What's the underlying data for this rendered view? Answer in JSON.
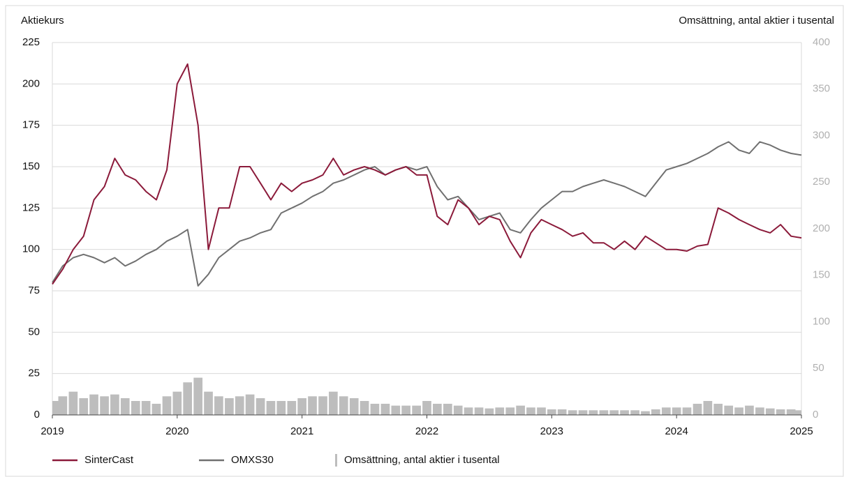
{
  "chart_data": {
    "type": "line",
    "ylabel": "Aktiekurs",
    "y2label": "Omsättning, antal aktier i tusental",
    "x": [
      2019,
      2019.083,
      2019.167,
      2019.25,
      2019.333,
      2019.417,
      2019.5,
      2019.583,
      2019.667,
      2019.75,
      2019.833,
      2019.917,
      2020,
      2020.083,
      2020.167,
      2020.25,
      2020.333,
      2020.417,
      2020.5,
      2020.583,
      2020.667,
      2020.75,
      2020.833,
      2020.917,
      2021,
      2021.083,
      2021.167,
      2021.25,
      2021.333,
      2021.417,
      2021.5,
      2021.583,
      2021.667,
      2021.75,
      2021.833,
      2021.917,
      2022,
      2022.083,
      2022.167,
      2022.25,
      2022.333,
      2022.417,
      2022.5,
      2022.583,
      2022.667,
      2022.75,
      2022.833,
      2022.917,
      2023,
      2023.083,
      2023.167,
      2023.25,
      2023.333,
      2023.417,
      2023.5,
      2023.583,
      2023.667,
      2023.75,
      2023.833,
      2023.917,
      2024,
      2024.083,
      2024.167,
      2024.25,
      2024.333,
      2024.417,
      2024.5,
      2024.583,
      2024.667,
      2024.75,
      2024.833,
      2024.917,
      2025
    ],
    "series": [
      {
        "name": "SinterCast",
        "color": "#8b1a3a",
        "kind": "line",
        "values": [
          79,
          88,
          100,
          108,
          130,
          138,
          155,
          145,
          142,
          135,
          130,
          148,
          200,
          212,
          175,
          100,
          125,
          125,
          150,
          150,
          140,
          130,
          140,
          135,
          140,
          142,
          145,
          155,
          145,
          148,
          150,
          148,
          145,
          148,
          150,
          145,
          145,
          120,
          115,
          130,
          125,
          115,
          120,
          118,
          105,
          95,
          110,
          118,
          115,
          112,
          108,
          110,
          104,
          104,
          100,
          105,
          100,
          108,
          104,
          100,
          100,
          99,
          102,
          103,
          125,
          122,
          118,
          115,
          112,
          110,
          115,
          108,
          107
        ]
      },
      {
        "name": "OMXS30",
        "color": "#707070",
        "kind": "line",
        "values": [
          80,
          90,
          95,
          97,
          95,
          92,
          95,
          90,
          93,
          97,
          100,
          105,
          108,
          112,
          78,
          85,
          95,
          100,
          105,
          107,
          110,
          112,
          122,
          125,
          128,
          132,
          135,
          140,
          142,
          145,
          148,
          150,
          145,
          148,
          150,
          148,
          150,
          138,
          130,
          132,
          125,
          118,
          120,
          122,
          112,
          110,
          118,
          125,
          130,
          135,
          135,
          138,
          140,
          142,
          140,
          138,
          135,
          132,
          140,
          148,
          150,
          152,
          155,
          158,
          162,
          165,
          160,
          158,
          165,
          163,
          160,
          158,
          157
        ]
      },
      {
        "name": "Omsättning, antal aktier i tusental",
        "color": "#bdbdbd",
        "kind": "bar",
        "axis": "y2",
        "values": [
          15,
          20,
          25,
          18,
          22,
          20,
          22,
          18,
          15,
          15,
          12,
          20,
          25,
          35,
          40,
          25,
          20,
          18,
          20,
          22,
          18,
          15,
          15,
          15,
          18,
          20,
          20,
          25,
          20,
          18,
          15,
          12,
          12,
          10,
          10,
          10,
          15,
          12,
          12,
          10,
          8,
          8,
          7,
          8,
          8,
          10,
          8,
          8,
          6,
          6,
          5,
          5,
          5,
          5,
          5,
          5,
          5,
          4,
          6,
          8,
          8,
          8,
          12,
          15,
          12,
          10,
          8,
          10,
          8,
          7,
          6,
          6,
          5
        ]
      }
    ],
    "xlim": [
      2019,
      2025
    ],
    "xticks": [
      2019,
      2020,
      2021,
      2022,
      2023,
      2024,
      2025
    ],
    "ylim": [
      0,
      225
    ],
    "yticks": [
      0,
      25,
      50,
      75,
      100,
      125,
      150,
      175,
      200,
      225
    ],
    "y2lim": [
      0,
      400
    ],
    "y2ticks": [
      0,
      50,
      100,
      150,
      200,
      250,
      300,
      350,
      400
    ],
    "grid": true
  }
}
